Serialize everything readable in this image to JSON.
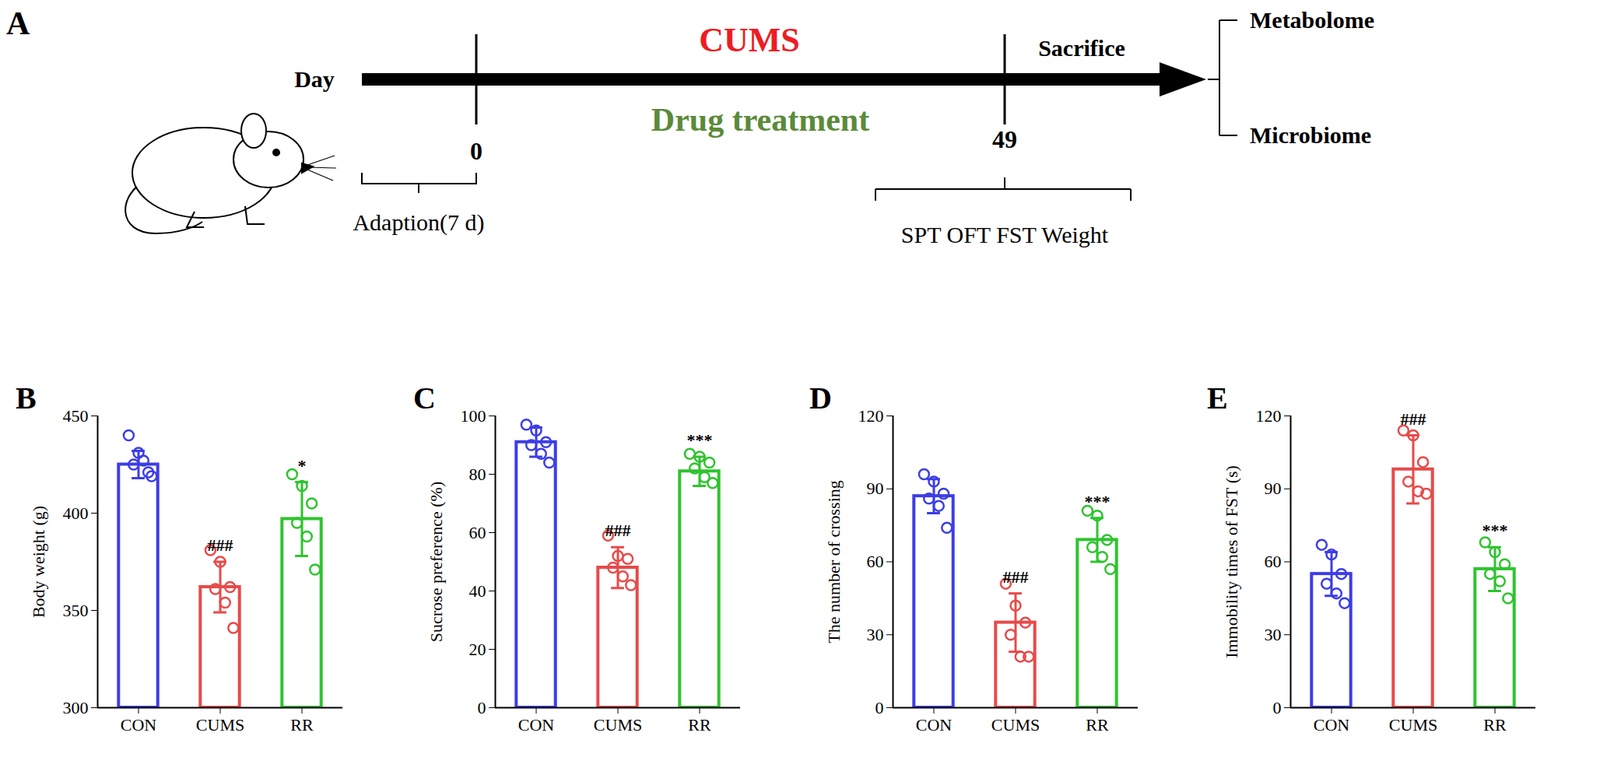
{
  "panel_a": {
    "label": "A",
    "axis_label": "Day",
    "day_marks": [
      "0",
      "49"
    ],
    "above": {
      "text": "CUMS",
      "color": "#ee1c24"
    },
    "below": {
      "text": "Drug treatment",
      "color": "#5b8a3a"
    },
    "end_label": "Sacrifice",
    "outputs": [
      "Metabolome",
      "Microbiome"
    ],
    "adaption": "Adaption(7 d)",
    "tests": "SPT OFT FST  Weight"
  },
  "chart_data": [
    {
      "type": "bar",
      "panel": "B",
      "y_label": "Body weight (g)",
      "categories": [
        "CON",
        "CUMS",
        "RR"
      ],
      "values": [
        425,
        362,
        397
      ],
      "error": [
        7,
        13,
        19
      ],
      "points": [
        [
          440,
          431,
          421,
          425,
          427,
          419
        ],
        [
          381,
          375,
          362,
          361,
          354,
          341
        ],
        [
          420,
          414,
          405,
          395,
          388,
          371
        ]
      ],
      "colors": [
        "#3d3de6",
        "#e84a4a",
        "#2ec42e"
      ],
      "ylim": [
        300,
        450
      ],
      "yticks": [
        300,
        350,
        400,
        450
      ],
      "annotations": [
        {
          "category": "CUMS",
          "text": "###"
        },
        {
          "category": "RR",
          "text": "*"
        }
      ]
    },
    {
      "type": "bar",
      "panel": "C",
      "y_label": "Sucrose preference (%)",
      "categories": [
        "CON",
        "CUMS",
        "RR"
      ],
      "values": [
        91,
        48,
        81
      ],
      "error": [
        5,
        7,
        5
      ],
      "points": [
        [
          97,
          95,
          91,
          90,
          87,
          84
        ],
        [
          59,
          52,
          51,
          48,
          45,
          42
        ],
        [
          87,
          86,
          84,
          82,
          79,
          77
        ]
      ],
      "colors": [
        "#3d3de6",
        "#e84a4a",
        "#2ec42e"
      ],
      "ylim": [
        0,
        100
      ],
      "yticks": [
        0,
        20,
        40,
        60,
        80,
        100
      ],
      "annotations": [
        {
          "category": "CUMS",
          "text": "###"
        },
        {
          "category": "RR",
          "text": "***"
        }
      ]
    },
    {
      "type": "bar",
      "panel": "D",
      "y_label": "The number of crossing",
      "categories": [
        "CON",
        "CUMS",
        "RR"
      ],
      "values": [
        87,
        35,
        69
      ],
      "error": [
        7,
        12,
        9
      ],
      "points": [
        [
          96,
          93,
          88,
          86,
          83,
          74
        ],
        [
          51,
          42,
          35,
          30,
          21,
          21
        ],
        [
          81,
          79,
          69,
          66,
          62,
          57
        ]
      ],
      "colors": [
        "#3d3de6",
        "#e84a4a",
        "#2ec42e"
      ],
      "ylim": [
        0,
        120
      ],
      "yticks": [
        0,
        30,
        60,
        90,
        120
      ],
      "annotations": [
        {
          "category": "CUMS",
          "text": "###"
        },
        {
          "category": "RR",
          "text": "***"
        }
      ]
    },
    {
      "type": "bar",
      "panel": "E",
      "y_label": "Immobility times of FST (s)",
      "categories": [
        "CON",
        "CUMS",
        "RR"
      ],
      "values": [
        55,
        98,
        57
      ],
      "error": [
        9,
        14,
        9
      ],
      "points": [
        [
          67,
          63,
          55,
          51,
          47,
          43
        ],
        [
          114,
          112,
          101,
          93,
          89,
          88
        ],
        [
          68,
          64,
          59,
          55,
          52,
          45
        ]
      ],
      "colors": [
        "#3d3de6",
        "#e84a4a",
        "#2ec42e"
      ],
      "ylim": [
        0,
        120
      ],
      "yticks": [
        0,
        30,
        60,
        90,
        120
      ],
      "annotations": [
        {
          "category": "CUMS",
          "text": "###"
        },
        {
          "category": "RR",
          "text": "***"
        }
      ]
    }
  ]
}
